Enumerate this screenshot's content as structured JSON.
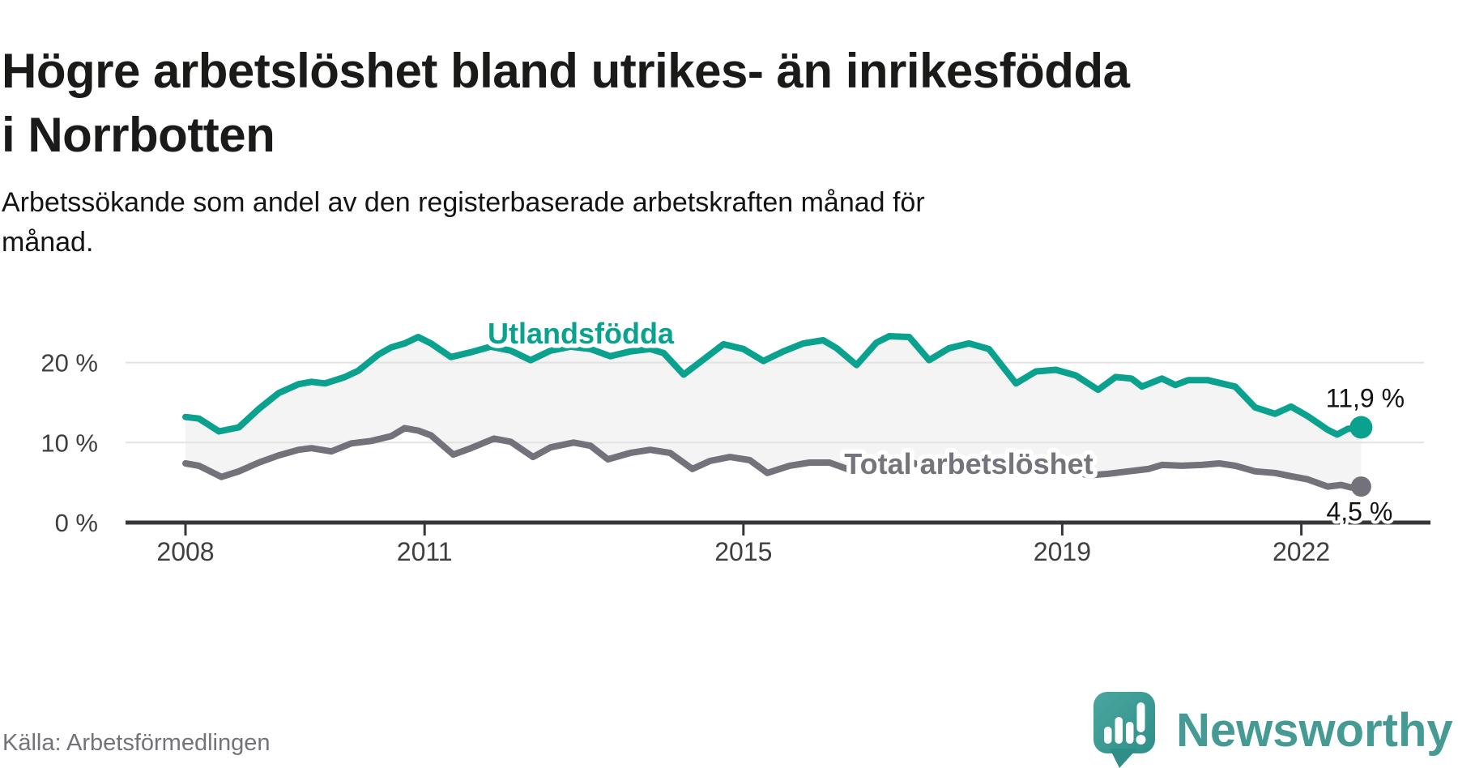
{
  "title": "Högre arbetslöshet bland utrikes- än inrikesfödda i Norrbotten",
  "subtitle": "Arbetssökande som andel av den registerbaserade arbetskraften månad för månad.",
  "source": "Källa: Arbetsförmedlingen",
  "brand": "Newsworthy",
  "colors": {
    "foreign_line": "#0aa18f",
    "total_line": "#73717a",
    "band": "#f4f4f4",
    "grid": "#e2e2e2",
    "axis": "#37373b",
    "tick_text": "#3f3f41",
    "end_label_text": "#121212",
    "title_text": "#1a1a18",
    "source_text": "#73737b",
    "logo_teal": "#3f9b94",
    "logo_teal_dark": "#2e8f89",
    "wordmark": "#459a94"
  },
  "chart_data": {
    "type": "line",
    "x_axis": {
      "min": 2008,
      "max": 2023.5,
      "ticks": [
        {
          "value": 2008,
          "label": "2008"
        },
        {
          "value": 2011,
          "label": "2011"
        },
        {
          "value": 2015,
          "label": "2015"
        },
        {
          "value": 2019,
          "label": "2019"
        },
        {
          "value": 2022,
          "label": "2022"
        }
      ]
    },
    "y_axis": {
      "min": 0,
      "max": 26,
      "unit": "%",
      "ticks": [
        {
          "value": 20,
          "label": "20 %"
        },
        {
          "value": 10,
          "label": "10 %"
        },
        {
          "value": 0,
          "label": "0 %"
        }
      ]
    },
    "grid": "horizontal",
    "legend": "inline-labels",
    "series": [
      {
        "id": "utlandsfodda",
        "name": "Utlandsfödda",
        "color": "#0aa18f",
        "end_label": "11,9 %",
        "end_value": 11.9,
        "points": [
          [
            2008.0,
            13.2
          ],
          [
            2008.17,
            13.0
          ],
          [
            2008.42,
            11.4
          ],
          [
            2008.67,
            11.9
          ],
          [
            2008.92,
            14.2
          ],
          [
            2009.17,
            16.2
          ],
          [
            2009.42,
            17.3
          ],
          [
            2009.58,
            17.6
          ],
          [
            2009.75,
            17.4
          ],
          [
            2010.0,
            18.2
          ],
          [
            2010.17,
            19.0
          ],
          [
            2010.42,
            21.0
          ],
          [
            2010.58,
            21.9
          ],
          [
            2010.75,
            22.4
          ],
          [
            2010.92,
            23.2
          ],
          [
            2011.08,
            22.4
          ],
          [
            2011.33,
            20.7
          ],
          [
            2011.58,
            21.3
          ],
          [
            2011.83,
            22.0
          ],
          [
            2012.08,
            21.5
          ],
          [
            2012.33,
            20.3
          ],
          [
            2012.58,
            21.5
          ],
          [
            2012.83,
            22.0
          ],
          [
            2013.08,
            21.7
          ],
          [
            2013.33,
            20.8
          ],
          [
            2013.58,
            21.4
          ],
          [
            2013.83,
            21.7
          ],
          [
            2014.0,
            21.2
          ],
          [
            2014.25,
            18.5
          ],
          [
            2014.5,
            20.4
          ],
          [
            2014.75,
            22.3
          ],
          [
            2015.0,
            21.7
          ],
          [
            2015.25,
            20.2
          ],
          [
            2015.5,
            21.4
          ],
          [
            2015.75,
            22.4
          ],
          [
            2016.0,
            22.8
          ],
          [
            2016.17,
            21.8
          ],
          [
            2016.42,
            19.7
          ],
          [
            2016.67,
            22.5
          ],
          [
            2016.83,
            23.3
          ],
          [
            2017.08,
            23.2
          ],
          [
            2017.33,
            20.3
          ],
          [
            2017.58,
            21.8
          ],
          [
            2017.83,
            22.4
          ],
          [
            2018.08,
            21.7
          ],
          [
            2018.42,
            17.4
          ],
          [
            2018.67,
            18.9
          ],
          [
            2018.92,
            19.1
          ],
          [
            2019.17,
            18.4
          ],
          [
            2019.45,
            16.6
          ],
          [
            2019.67,
            18.2
          ],
          [
            2019.87,
            18.0
          ],
          [
            2020.0,
            17.0
          ],
          [
            2020.25,
            18.0
          ],
          [
            2020.42,
            17.2
          ],
          [
            2020.58,
            17.8
          ],
          [
            2020.83,
            17.8
          ],
          [
            2021.0,
            17.4
          ],
          [
            2021.17,
            17.0
          ],
          [
            2021.42,
            14.4
          ],
          [
            2021.67,
            13.6
          ],
          [
            2021.87,
            14.5
          ],
          [
            2022.08,
            13.3
          ],
          [
            2022.33,
            11.6
          ],
          [
            2022.45,
            11.0
          ],
          [
            2022.58,
            11.7
          ],
          [
            2022.75,
            11.9
          ]
        ]
      },
      {
        "id": "total",
        "name": "Total arbetslöshet",
        "color": "#73717a",
        "end_label": "4,5 %",
        "end_value": 4.5,
        "points": [
          [
            2008.0,
            7.4
          ],
          [
            2008.17,
            7.1
          ],
          [
            2008.45,
            5.7
          ],
          [
            2008.67,
            6.4
          ],
          [
            2008.92,
            7.5
          ],
          [
            2009.17,
            8.4
          ],
          [
            2009.42,
            9.1
          ],
          [
            2009.58,
            9.3
          ],
          [
            2009.83,
            8.9
          ],
          [
            2010.08,
            9.9
          ],
          [
            2010.33,
            10.2
          ],
          [
            2010.58,
            10.8
          ],
          [
            2010.75,
            11.8
          ],
          [
            2010.92,
            11.5
          ],
          [
            2011.08,
            10.9
          ],
          [
            2011.36,
            8.5
          ],
          [
            2011.58,
            9.3
          ],
          [
            2011.87,
            10.5
          ],
          [
            2012.08,
            10.1
          ],
          [
            2012.36,
            8.2
          ],
          [
            2012.58,
            9.4
          ],
          [
            2012.87,
            10.0
          ],
          [
            2013.08,
            9.6
          ],
          [
            2013.3,
            7.9
          ],
          [
            2013.58,
            8.7
          ],
          [
            2013.83,
            9.1
          ],
          [
            2014.08,
            8.7
          ],
          [
            2014.36,
            6.7
          ],
          [
            2014.58,
            7.7
          ],
          [
            2014.83,
            8.2
          ],
          [
            2015.08,
            7.8
          ],
          [
            2015.3,
            6.2
          ],
          [
            2015.58,
            7.1
          ],
          [
            2015.83,
            7.5
          ],
          [
            2016.08,
            7.5
          ],
          [
            2016.33,
            6.6
          ],
          [
            2016.58,
            7.3
          ],
          [
            2016.83,
            8.0
          ],
          [
            2017.08,
            7.7
          ],
          [
            2017.33,
            6.6
          ],
          [
            2017.58,
            7.1
          ],
          [
            2017.83,
            7.5
          ],
          [
            2018.08,
            7.2
          ],
          [
            2018.36,
            6.0
          ],
          [
            2018.58,
            6.4
          ],
          [
            2018.83,
            6.9
          ],
          [
            2019.08,
            6.6
          ],
          [
            2019.33,
            5.9
          ],
          [
            2019.58,
            6.1
          ],
          [
            2019.83,
            6.4
          ],
          [
            2020.08,
            6.7
          ],
          [
            2020.25,
            7.2
          ],
          [
            2020.5,
            7.1
          ],
          [
            2020.75,
            7.2
          ],
          [
            2020.97,
            7.4
          ],
          [
            2021.17,
            7.1
          ],
          [
            2021.42,
            6.4
          ],
          [
            2021.67,
            6.2
          ],
          [
            2021.87,
            5.8
          ],
          [
            2022.08,
            5.4
          ],
          [
            2022.33,
            4.5
          ],
          [
            2022.5,
            4.7
          ],
          [
            2022.62,
            4.4
          ],
          [
            2022.75,
            4.5
          ]
        ]
      }
    ]
  }
}
